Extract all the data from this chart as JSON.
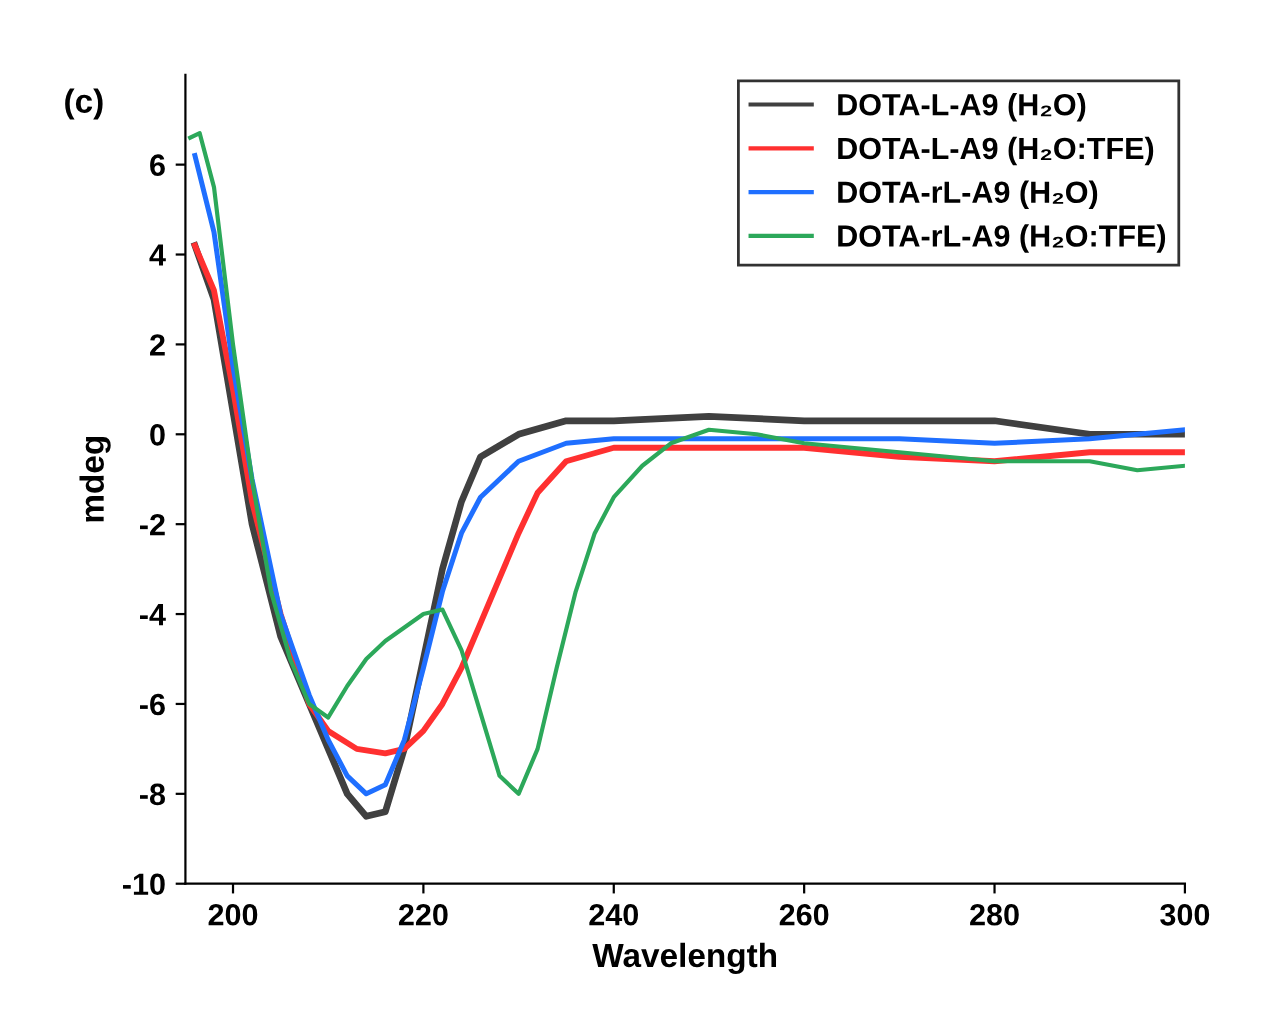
{
  "chart_data": {
    "type": "line",
    "xlabel": "Wavelength",
    "ylabel": "mdeg",
    "annotations": [
      "(c)"
    ],
    "xlim": [
      195,
      300
    ],
    "ylim": [
      -10,
      8
    ],
    "xticks": [
      200,
      220,
      240,
      260,
      280,
      300
    ],
    "yticks": [
      -10,
      -8,
      -6,
      -4,
      -2,
      0,
      2,
      4,
      6
    ],
    "grid": false,
    "legend": "top right",
    "marker": "none",
    "line_style": "solid",
    "series": [
      {
        "name": "DOTA-L-A9 (H₂O)",
        "color": "#404040",
        "x": [
          196,
          198,
          200,
          202,
          205,
          208,
          210,
          212,
          214,
          216,
          218,
          220,
          222,
          224,
          226,
          230,
          235,
          240,
          250,
          260,
          270,
          280,
          290,
          300
        ],
        "values": [
          4.2,
          3,
          0.5,
          -2,
          -4.5,
          -6,
          -7,
          -8,
          -8.5,
          -8.4,
          -7,
          -5,
          -3,
          -1.5,
          -0.5,
          0,
          0.3,
          0.3,
          0.4,
          0.3,
          0.3,
          0.3,
          0,
          0
        ]
      },
      {
        "name": "DOTA-L-A9 (H₂O:TFE)",
        "color": "#ff3030",
        "x": [
          196,
          198,
          200,
          202,
          205,
          208,
          210,
          213,
          216,
          218,
          220,
          222,
          224,
          226,
          228,
          230,
          232,
          235,
          240,
          250,
          260,
          270,
          280,
          290,
          300
        ],
        "values": [
          4.2,
          3.2,
          1,
          -1.5,
          -4,
          -6,
          -6.6,
          -7,
          -7.1,
          -7,
          -6.6,
          -6,
          -5.2,
          -4.2,
          -3.2,
          -2.2,
          -1.3,
          -0.6,
          -0.3,
          -0.3,
          -0.3,
          -0.5,
          -0.6,
          -0.4,
          -0.4
        ]
      },
      {
        "name": "DOTA-rL-A9 (H₂O)",
        "color": "#1f6fff",
        "x": [
          196,
          198,
          200,
          202,
          205,
          208,
          210,
          212,
          214,
          216,
          218,
          220,
          222,
          224,
          226,
          230,
          235,
          240,
          250,
          260,
          270,
          280,
          290,
          300
        ],
        "values": [
          6.2,
          4.5,
          1.5,
          -1,
          -4,
          -5.8,
          -6.8,
          -7.6,
          -8,
          -7.8,
          -6.8,
          -5.2,
          -3.5,
          -2.2,
          -1.4,
          -0.6,
          -0.2,
          -0.1,
          -0.1,
          -0.1,
          -0.1,
          -0.2,
          -0.1,
          0.1
        ]
      },
      {
        "name": "DOTA-rL-A9 (H₂O:TFE)",
        "color": "#2ca85a",
        "x": [
          195.5,
          196.5,
          198,
          200,
          202,
          204,
          206,
          208,
          210,
          212,
          214,
          216,
          218,
          220,
          222,
          224,
          226,
          228,
          230,
          232,
          234,
          236,
          238,
          240,
          243,
          246,
          250,
          255,
          260,
          270,
          280,
          290,
          295,
          300
        ],
        "values": [
          6.6,
          6.7,
          5.5,
          2,
          -1,
          -3.5,
          -5,
          -6,
          -6.3,
          -5.6,
          -5,
          -4.6,
          -4.3,
          -4,
          -3.9,
          -4.8,
          -6.2,
          -7.6,
          -8,
          -7,
          -5.2,
          -3.5,
          -2.2,
          -1.4,
          -0.7,
          -0.2,
          0.1,
          0,
          -0.2,
          -0.4,
          -0.6,
          -0.6,
          -0.8,
          -0.7
        ]
      }
    ]
  }
}
